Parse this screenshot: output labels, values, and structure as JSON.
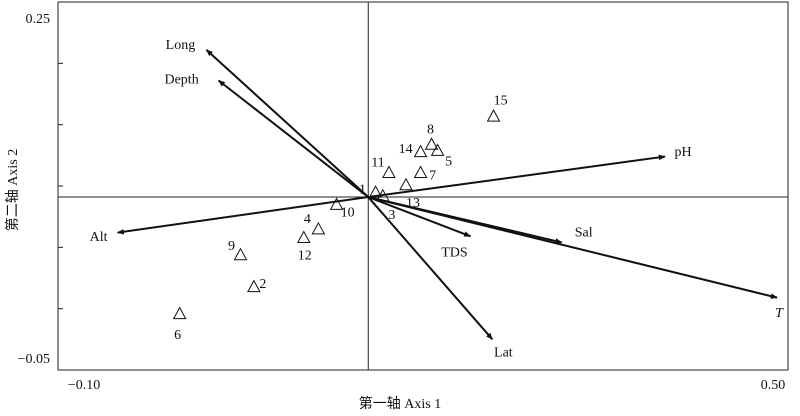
{
  "chart_data": {
    "type": "biplot",
    "x_label": "第一轴 Axis 1",
    "y_label": "第二轴 Axis 2",
    "xlim": [
      -0.1,
      0.5
    ],
    "ylim": [
      -0.05,
      0.25
    ],
    "xticks": [
      {
        "value": -0.1,
        "label": "−0.10"
      },
      {
        "value": 0.5,
        "label": "0.50"
      }
    ],
    "yticks": [
      0.25,
      {
        "value": -0.05,
        "label": "−0.05"
      }
    ],
    "yminorticks": [
      0,
      0.05,
      0.1,
      0.15,
      0.2
    ],
    "origin": {
      "x": 0.155,
      "y": 0.091
    },
    "points": {
      "labels": [
        "1",
        "2",
        "3",
        "4",
        "5",
        "6",
        "7",
        "8",
        "9",
        "10",
        "11",
        "12",
        "13",
        "14",
        "15"
      ],
      "x": [
        0.161,
        0.061,
        0.167,
        0.114,
        0.212,
        0.0,
        0.198,
        0.207,
        0.05,
        0.129,
        0.172,
        0.102,
        0.186,
        0.198,
        0.258
      ],
      "y": [
        0.095,
        0.018,
        0.092,
        0.065,
        0.129,
        -0.004,
        0.111,
        0.134,
        0.044,
        0.085,
        0.111,
        0.058,
        0.101,
        0.128,
        0.157
      ]
    },
    "arrows": {
      "names": [
        "Long",
        "Depth",
        "pH",
        "Sal",
        "TDS",
        "T",
        "Lat",
        "Alt"
      ],
      "x": [
        0.022,
        0.032,
        0.399,
        0.314,
        0.239,
        0.491,
        0.257,
        -0.051
      ],
      "y": [
        0.211,
        0.186,
        0.124,
        0.054,
        0.059,
        0.009,
        -0.025,
        0.062
      ]
    }
  }
}
